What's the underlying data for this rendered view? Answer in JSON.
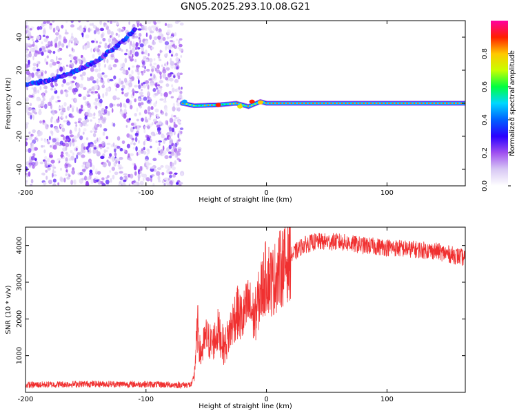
{
  "figure": {
    "title": "GN05.2025.293.10.08.G21"
  },
  "chart_data": [
    {
      "type": "heatmap",
      "xlabel": "Height of straight line (km)",
      "ylabel": "Frequency (Hz)",
      "xlim": [
        -200,
        165
      ],
      "ylim": [
        -50,
        50
      ],
      "xticks": [
        -200,
        -100,
        0,
        100
      ],
      "yticks": [
        -40,
        -20,
        0,
        20,
        40
      ],
      "noise_region_x": [
        -200,
        -70
      ],
      "signal_track": {
        "descending_branch": {
          "x": [
            -200,
            -180,
            -160,
            -140,
            -120,
            -108
          ],
          "y": [
            11,
            14,
            19,
            26,
            37,
            46
          ]
        },
        "flat_branch": {
          "x": [
            -70,
            -60,
            -40,
            -25,
            -15,
            -5,
            0,
            165
          ],
          "y": [
            0,
            -1.5,
            -1,
            0,
            -2,
            1,
            0,
            0
          ]
        }
      },
      "colorbar": {
        "label": "Normalized spectral amplitude",
        "range": [
          0,
          1
        ],
        "ticks": [
          "0.0",
          "0.2",
          "0.4",
          "0.6",
          "0.8"
        ],
        "colors": [
          "#ffffff",
          "#d8c8f4",
          "#a050f0",
          "#2a00ff",
          "#0060ff",
          "#00d8ff",
          "#00ff40",
          "#c8ff00",
          "#ffc800",
          "#ff2000",
          "#ff00a0"
        ]
      }
    },
    {
      "type": "line",
      "xlabel": "Height of straight line (km)",
      "ylabel": "SNR (10 * v/v)",
      "xlim": [
        -200,
        165
      ],
      "ylim": [
        0,
        4500
      ],
      "xticks": [
        -200,
        -100,
        0,
        100
      ],
      "yticks": [
        1000,
        2000,
        3000,
        4000
      ],
      "color": "#f03030",
      "series": [
        {
          "name": "SNR",
          "x": [
            -200,
            -150,
            -100,
            -70,
            -62,
            -60,
            -58,
            -57,
            -55,
            -50,
            -45,
            -40,
            -35,
            -30,
            -25,
            -20,
            -15,
            -10,
            -5,
            0,
            5,
            10,
            20,
            30,
            40,
            60,
            80,
            100,
            120,
            140,
            160,
            165
          ],
          "y": [
            200,
            230,
            220,
            200,
            210,
            500,
            1400,
            1800,
            1000,
            1500,
            1300,
            1700,
            1200,
            1700,
            2200,
            2000,
            2400,
            2000,
            2700,
            3200,
            3000,
            3300,
            3700,
            4000,
            4100,
            4100,
            4000,
            3950,
            3900,
            3850,
            3700,
            3650
          ]
        }
      ]
    }
  ]
}
